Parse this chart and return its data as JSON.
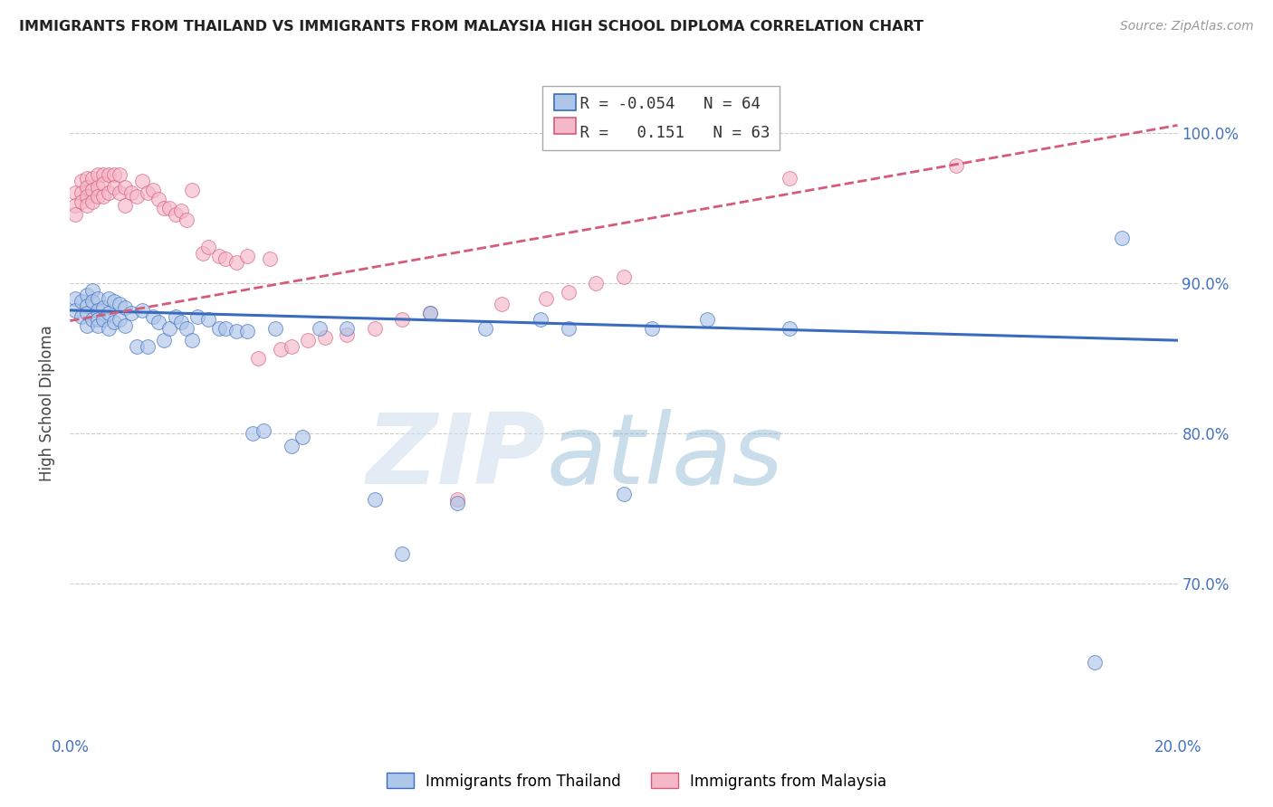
{
  "title": "IMMIGRANTS FROM THAILAND VS IMMIGRANTS FROM MALAYSIA HIGH SCHOOL DIPLOMA CORRELATION CHART",
  "source": "Source: ZipAtlas.com",
  "ylabel": "High School Diploma",
  "legend_label_blue": "Immigrants from Thailand",
  "legend_label_pink": "Immigrants from Malaysia",
  "R_blue": -0.054,
  "N_blue": 64,
  "R_pink": 0.151,
  "N_pink": 63,
  "xlim": [
    0.0,
    0.2
  ],
  "ylim": [
    0.6,
    1.04
  ],
  "yticks": [
    0.7,
    0.8,
    0.9,
    1.0
  ],
  "ytick_labels": [
    "70.0%",
    "80.0%",
    "90.0%",
    "100.0%"
  ],
  "xticks": [
    0.0,
    0.05,
    0.1,
    0.15,
    0.2
  ],
  "xtick_labels": [
    "0.0%",
    "",
    "",
    "",
    "20.0%"
  ],
  "color_blue": "#aec6e8",
  "color_pink": "#f5b8c8",
  "trend_blue": "#3a6bbf",
  "trend_pink": "#d45c7a",
  "watermark_zip": "ZIP",
  "watermark_atlas": "atlas",
  "background": "#ffffff",
  "grid_color": "#cccccc",
  "blue_x": [
    0.001,
    0.001,
    0.002,
    0.002,
    0.003,
    0.003,
    0.003,
    0.003,
    0.004,
    0.004,
    0.004,
    0.005,
    0.005,
    0.005,
    0.005,
    0.006,
    0.006,
    0.007,
    0.007,
    0.007,
    0.008,
    0.008,
    0.009,
    0.009,
    0.01,
    0.01,
    0.011,
    0.012,
    0.013,
    0.014,
    0.015,
    0.016,
    0.017,
    0.018,
    0.019,
    0.02,
    0.021,
    0.022,
    0.023,
    0.025,
    0.027,
    0.028,
    0.03,
    0.032,
    0.033,
    0.035,
    0.037,
    0.04,
    0.042,
    0.045,
    0.05,
    0.055,
    0.06,
    0.065,
    0.07,
    0.075,
    0.085,
    0.09,
    0.1,
    0.105,
    0.115,
    0.13,
    0.185,
    0.19
  ],
  "blue_y": [
    0.89,
    0.882,
    0.888,
    0.878,
    0.892,
    0.885,
    0.88,
    0.872,
    0.895,
    0.888,
    0.876,
    0.89,
    0.882,
    0.876,
    0.872,
    0.884,
    0.876,
    0.89,
    0.88,
    0.87,
    0.888,
    0.874,
    0.886,
    0.876,
    0.884,
    0.872,
    0.88,
    0.858,
    0.882,
    0.858,
    0.878,
    0.874,
    0.862,
    0.87,
    0.878,
    0.874,
    0.87,
    0.862,
    0.878,
    0.876,
    0.87,
    0.87,
    0.868,
    0.868,
    0.8,
    0.802,
    0.87,
    0.792,
    0.798,
    0.87,
    0.87,
    0.756,
    0.72,
    0.88,
    0.754,
    0.87,
    0.876,
    0.87,
    0.76,
    0.87,
    0.876,
    0.87,
    0.648,
    0.93
  ],
  "pink_x": [
    0.001,
    0.001,
    0.001,
    0.002,
    0.002,
    0.002,
    0.003,
    0.003,
    0.003,
    0.003,
    0.004,
    0.004,
    0.004,
    0.005,
    0.005,
    0.005,
    0.006,
    0.006,
    0.006,
    0.007,
    0.007,
    0.008,
    0.008,
    0.009,
    0.009,
    0.01,
    0.01,
    0.011,
    0.012,
    0.013,
    0.014,
    0.015,
    0.016,
    0.017,
    0.018,
    0.019,
    0.02,
    0.021,
    0.022,
    0.024,
    0.025,
    0.027,
    0.028,
    0.03,
    0.032,
    0.034,
    0.036,
    0.038,
    0.04,
    0.043,
    0.046,
    0.05,
    0.055,
    0.06,
    0.065,
    0.07,
    0.078,
    0.086,
    0.09,
    0.095,
    0.1,
    0.13,
    0.16
  ],
  "pink_y": [
    0.96,
    0.952,
    0.946,
    0.968,
    0.96,
    0.954,
    0.97,
    0.964,
    0.958,
    0.952,
    0.97,
    0.962,
    0.954,
    0.972,
    0.964,
    0.958,
    0.972,
    0.966,
    0.958,
    0.972,
    0.96,
    0.972,
    0.964,
    0.972,
    0.96,
    0.964,
    0.952,
    0.96,
    0.958,
    0.968,
    0.96,
    0.962,
    0.956,
    0.95,
    0.95,
    0.946,
    0.948,
    0.942,
    0.962,
    0.92,
    0.924,
    0.918,
    0.916,
    0.914,
    0.918,
    0.85,
    0.916,
    0.856,
    0.858,
    0.862,
    0.864,
    0.866,
    0.87,
    0.876,
    0.88,
    0.756,
    0.886,
    0.89,
    0.894,
    0.9,
    0.904,
    0.97,
    0.978
  ]
}
